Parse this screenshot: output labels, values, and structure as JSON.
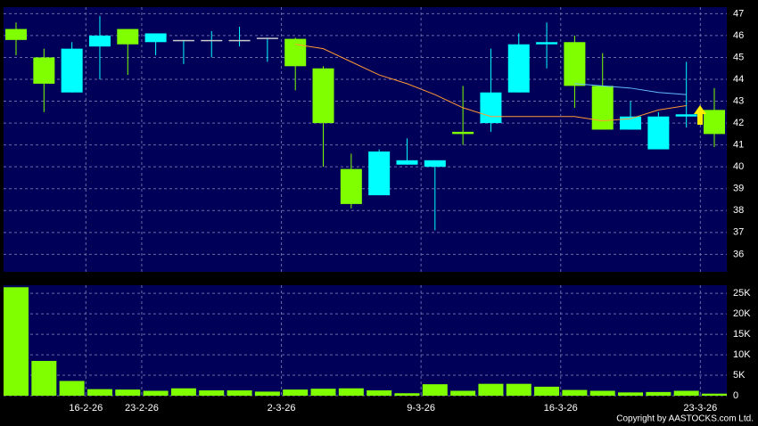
{
  "chart_data": [
    {
      "type": "candlestick",
      "up_color": "#00ffff",
      "down_color": "#80ff00",
      "open": [
        46.3,
        45.0,
        43.4,
        45.5,
        46.3,
        45.7,
        45.8,
        45.8,
        45.8,
        45.9,
        45.85,
        44.5,
        39.9,
        38.7,
        40.1,
        40.0,
        41.6,
        42.0,
        43.4,
        45.6,
        45.7,
        43.7,
        41.7,
        40.8,
        42.3,
        42.6
      ],
      "high": [
        46.6,
        45.4,
        45.7,
        46.9,
        46.3,
        46.1,
        45.8,
        46.2,
        46.4,
        45.9,
        45.9,
        44.6,
        40.6,
        40.8,
        41.3,
        40.3,
        43.7,
        45.4,
        46.1,
        46.6,
        46.0,
        45.2,
        43.0,
        42.5,
        44.8,
        43.6
      ],
      "low": [
        45.1,
        42.5,
        43.4,
        44.0,
        44.2,
        45.1,
        44.7,
        45.0,
        45.5,
        44.8,
        43.5,
        40.0,
        38.1,
        38.7,
        40.1,
        37.1,
        41.0,
        41.6,
        43.4,
        44.5,
        42.7,
        41.7,
        41.7,
        40.8,
        41.8,
        40.9
      ],
      "close": [
        45.8,
        43.8,
        45.4,
        46.0,
        45.6,
        46.1,
        45.8,
        45.8,
        45.8,
        45.9,
        44.6,
        42.0,
        38.3,
        40.7,
        40.3,
        40.3,
        41.5,
        43.4,
        45.6,
        45.7,
        43.7,
        41.7,
        42.3,
        42.3,
        42.4,
        41.5
      ],
      "lines": [
        {
          "color": "#ff9933",
          "values": [
            null,
            null,
            null,
            null,
            null,
            null,
            null,
            null,
            null,
            null,
            45.6,
            45.4,
            44.8,
            44.2,
            43.8,
            43.3,
            42.7,
            42.3,
            42.3,
            42.3,
            42.3,
            42.1,
            42.2,
            42.6,
            42.8,
            null
          ]
        },
        {
          "color": "#66bbff",
          "values": [
            null,
            null,
            null,
            null,
            null,
            null,
            null,
            null,
            null,
            null,
            null,
            null,
            null,
            null,
            null,
            null,
            null,
            null,
            null,
            null,
            43.8,
            43.7,
            43.6,
            43.4,
            43.3,
            null
          ]
        }
      ],
      "ylim": [
        35.2,
        47.3
      ],
      "yticks": [
        36,
        37,
        38,
        39,
        40,
        41,
        42,
        43,
        44,
        45,
        46,
        47
      ],
      "grid": true
    },
    {
      "type": "bar",
      "color": "#80ff00",
      "values": [
        26500,
        8500,
        3600,
        1600,
        1500,
        1200,
        1800,
        1300,
        1300,
        1000,
        1500,
        1700,
        1800,
        1300,
        600,
        2800,
        1200,
        2900,
        2900,
        2200,
        1400,
        1200,
        800,
        900,
        1200,
        500
      ],
      "ylim": [
        0,
        27000
      ],
      "yticks": [
        0,
        {
          "value": 5000,
          "label": "5K"
        },
        {
          "value": 10000,
          "label": "10K"
        },
        {
          "value": 15000,
          "label": "15K"
        },
        {
          "value": 20000,
          "label": "20K"
        },
        {
          "value": 25000,
          "label": "25K"
        }
      ],
      "xticks": [
        {
          "value": 2.5,
          "label": "16-2-26"
        },
        {
          "value": 4.5,
          "label": "23-2-26"
        },
        {
          "value": 9.5,
          "label": "2-3-26"
        },
        {
          "value": 14.5,
          "label": "9-3-26"
        },
        {
          "value": 19.5,
          "label": "16-3-26"
        },
        {
          "value": 24.5,
          "label": "23-3-26"
        }
      ],
      "grid": true,
      "copyright": "Copyright by AASTOCKS.com Ltd."
    }
  ]
}
